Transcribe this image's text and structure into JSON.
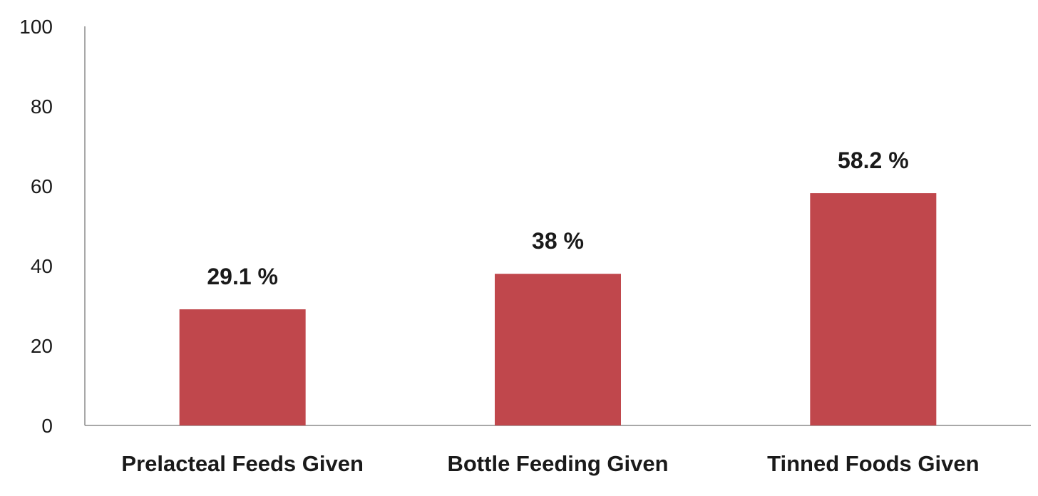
{
  "chart_data": {
    "type": "bar",
    "categories": [
      "Prelacteal Feeds Given",
      "Bottle Feeding Given",
      "Tinned Foods Given"
    ],
    "values": [
      29.1,
      38,
      58.2
    ],
    "data_labels": [
      "29.1 %",
      "38 %",
      "58.2 %"
    ],
    "title": "",
    "xlabel": "",
    "ylabel": "",
    "ylim": [
      0,
      100
    ],
    "yticks": [
      0,
      20,
      40,
      60,
      80,
      100
    ],
    "grid": false,
    "legend": "none",
    "bar_color": "#C0474C"
  }
}
